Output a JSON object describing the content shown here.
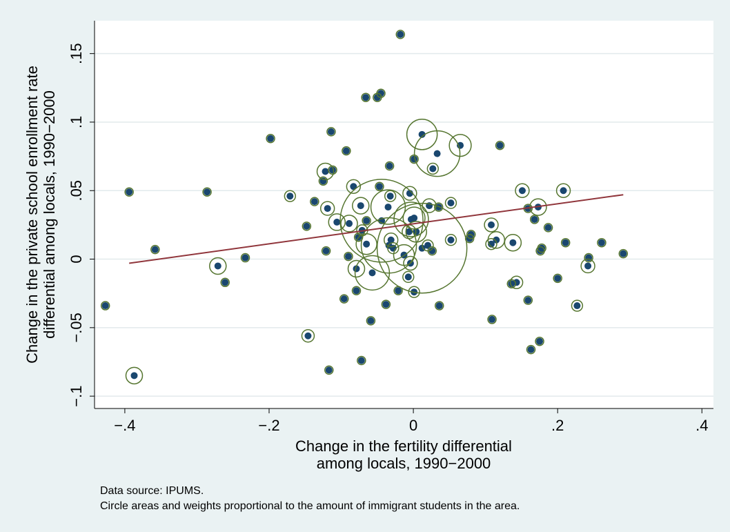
{
  "chart_data": {
    "type": "scatter",
    "x_label": [
      "Change in the fertility differential",
      "among locals, 1990−2000"
    ],
    "y_label": [
      "Change in the private school enrollment rate",
      "differential among locals, 1990−2000"
    ],
    "notes": [
      "Data source:  IPUMS.",
      "Circle areas and weights proportional to the amount of immigrant students in the area."
    ],
    "xlim": [
      -0.442,
      0.416
    ],
    "ylim": [
      -0.109,
      0.174
    ],
    "xticks": [
      {
        "value": -0.4,
        "label": "−.4"
      },
      {
        "value": -0.2,
        "label": "−.2"
      },
      0,
      {
        "value": 0.2,
        "label": ".2"
      },
      {
        "value": 0.4,
        "label": ".4"
      }
    ],
    "yticks": [
      {
        "value": -0.1,
        "label": "−.1"
      },
      {
        "value": -0.05,
        "label": "−.05"
      },
      0,
      {
        "value": 0.05,
        "label": ".05"
      },
      {
        "value": 0.1,
        "label": ".1"
      },
      {
        "value": 0.15,
        "label": ".15"
      }
    ],
    "grid": true,
    "series": [
      {
        "color": "#1a476f",
        "edgecolor": "#55752f",
        "x": [
          -0.427,
          -0.394,
          -0.387,
          -0.358,
          -0.286,
          -0.271,
          -0.261,
          -0.233,
          -0.198,
          -0.171,
          -0.148,
          -0.146,
          -0.137,
          -0.125,
          -0.122,
          -0.119,
          -0.121,
          -0.117,
          -0.114,
          -0.112,
          -0.106,
          -0.096,
          -0.093,
          -0.089,
          -0.09,
          -0.083,
          -0.079,
          -0.079,
          -0.076,
          -0.073,
          -0.071,
          -0.072,
          -0.066,
          -0.065,
          -0.065,
          -0.059,
          -0.057,
          -0.05,
          -0.045,
          -0.047,
          -0.044,
          -0.038,
          -0.035,
          -0.034,
          -0.033,
          -0.032,
          -0.031,
          -0.028,
          -0.021,
          -0.018,
          -0.013,
          -0.006,
          -0.005,
          -0.007,
          -0.004,
          -0.003,
          0.001,
          0.001,
          0.004,
          0.001,
          0.012,
          0.012,
          0.02,
          0.022,
          0.026,
          0.033,
          0.035,
          0.036,
          0.027,
          0.052,
          0.052,
          0.065,
          0.078,
          0.08,
          0.108,
          0.108,
          0.109,
          0.115,
          0.12,
          0.138,
          0.136,
          0.143,
          0.151,
          0.159,
          0.159,
          0.163,
          0.168,
          0.173,
          0.176,
          0.178,
          0.175,
          0.187,
          0.2,
          0.208,
          0.211,
          0.227,
          0.243,
          0.242,
          0.261,
          0.291
        ],
        "y": [
          -0.034,
          0.049,
          -0.085,
          0.007,
          0.049,
          -0.005,
          -0.017,
          0.001,
          0.088,
          0.046,
          0.024,
          -0.056,
          0.042,
          0.057,
          0.064,
          0.037,
          0.006,
          -0.081,
          0.093,
          0.065,
          0.027,
          -0.029,
          0.079,
          0.026,
          0.002,
          0.053,
          -0.007,
          -0.023,
          0.016,
          0.039,
          0.021,
          -0.074,
          0.118,
          0.011,
          0.028,
          -0.045,
          -0.01,
          0.118,
          0.121,
          0.053,
          0.028,
          -0.033,
          0.038,
          0.01,
          0.068,
          0.046,
          0.014,
          0.008,
          -0.023,
          0.164,
          0.003,
          0.02,
          0.048,
          -0.013,
          -0.003,
          0.029,
          -0.024,
          0.073,
          0.02,
          0.03,
          0.008,
          0.091,
          0.01,
          0.039,
          0.006,
          0.077,
          0.038,
          -0.034,
          0.066,
          0.041,
          0.014,
          0.083,
          0.015,
          0.018,
          0.025,
          0.011,
          -0.044,
          0.014,
          0.083,
          0.012,
          -0.018,
          -0.017,
          0.05,
          0.037,
          -0.03,
          -0.066,
          0.029,
          0.038,
          0.006,
          0.008,
          -0.06,
          0.023,
          -0.014,
          0.05,
          0.012,
          -0.034,
          0.001,
          -0.005,
          0.012,
          0.004
        ],
        "sizes": [
          4,
          4,
          16,
          4,
          4,
          16,
          4,
          4,
          4,
          7,
          4,
          9,
          4,
          4,
          16,
          11,
          4,
          4,
          4,
          4,
          16,
          4,
          4,
          16,
          4,
          11,
          16,
          4,
          4,
          16,
          7,
          4,
          4,
          25,
          4,
          4,
          69,
          4,
          4,
          4,
          400,
          4,
          69,
          178,
          4,
          7,
          11,
          7,
          4,
          4,
          25,
          11,
          11,
          7,
          11,
          69,
          7,
          4,
          25,
          28,
          470,
          54,
          7,
          11,
          4,
          121,
          4,
          4,
          7,
          7,
          7,
          28,
          4,
          4,
          11,
          7,
          4,
          16,
          4,
          16,
          4,
          9,
          11,
          4,
          4,
          4,
          4,
          16,
          4,
          4,
          4,
          4,
          4,
          11,
          4,
          7,
          4,
          11,
          4,
          4
        ]
      }
    ],
    "fit": {
      "color": "#90353b",
      "x": [
        -0.394,
        0.291
      ],
      "y": [
        -0.003,
        0.047
      ]
    }
  }
}
